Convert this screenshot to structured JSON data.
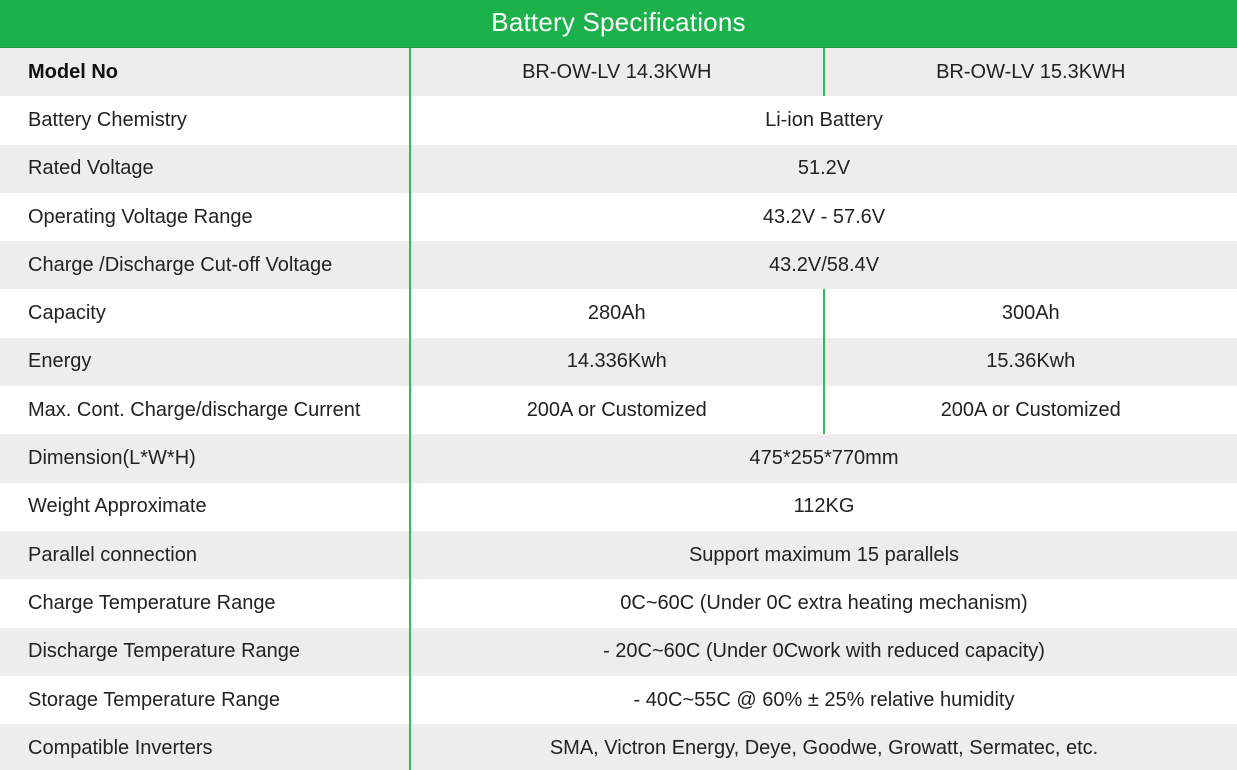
{
  "title": "Battery Specifications",
  "header": {
    "label": "Model No",
    "models": [
      "BR-OW-LV 14.3KWH",
      "BR-OW-LV 15.3KWH"
    ]
  },
  "rows": [
    {
      "label": "Battery Chemistry",
      "value": "Li-ion Battery"
    },
    {
      "label": "Rated Voltage",
      "value": "51.2V"
    },
    {
      "label": "Operating Voltage Range",
      "value": "43.2V - 57.6V"
    },
    {
      "label": "Charge /Discharge Cut-off Voltage",
      "value": "43.2V/58.4V"
    },
    {
      "label": "Capacity",
      "values": [
        "280Ah",
        "300Ah"
      ]
    },
    {
      "label": "Energy",
      "values": [
        "14.336Kwh",
        "15.36Kwh"
      ]
    },
    {
      "label": "Max. Cont. Charge/discharge Current",
      "values": [
        "200A or Customized",
        "200A or Customized"
      ]
    },
    {
      "label": "Dimension(L*W*H)",
      "value": "475*255*770mm"
    },
    {
      "label": "Weight  Approximate",
      "value": "112KG"
    },
    {
      "label": "Parallel connection",
      "value": "Support maximum 15 parallels"
    },
    {
      "label": "Charge Temperature Range",
      "value": "0C~60C (Under 0C extra heating mechanism)"
    },
    {
      "label": "Discharge Temperature Range",
      "value": "- 20C~60C (Under 0Cwork with reduced capacity)"
    },
    {
      "label": "Storage Temperature Range",
      "value": "-  40C~55C @ 60% ±  25% relative humidity"
    },
    {
      "label": "Compatible Inverters",
      "value": "SMA, Victron Energy, Deye, Goodwe, Growatt, Sermatec, etc."
    }
  ],
  "colors": {
    "header_green": "#1bb24b",
    "divider_green": "#2dbb5c",
    "stripe_gray": "#ededed"
  }
}
